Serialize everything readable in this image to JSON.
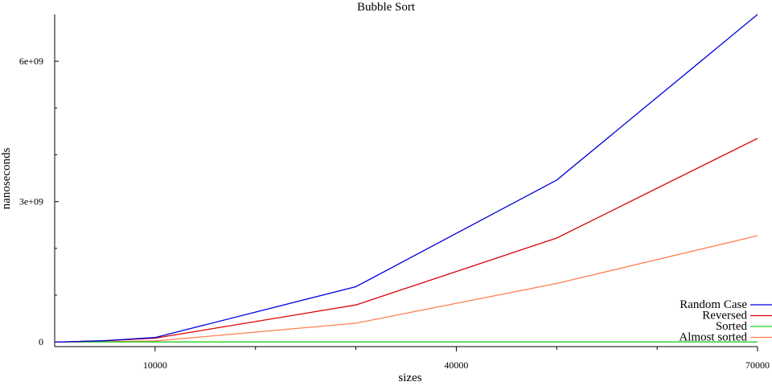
{
  "chart_data": {
    "type": "line",
    "title": "Bubble Sort",
    "xlabel": "sizes",
    "ylabel": "nanoseconds",
    "xlim": [
      0,
      70000
    ],
    "ylim": [
      -100000000,
      7000000000
    ],
    "xticks": [
      10000,
      40000,
      70000
    ],
    "xticks_minor": [
      20000,
      30000,
      50000,
      60000
    ],
    "xtick_labels": [
      "10000",
      "40000",
      "70000"
    ],
    "yticks": [
      0,
      3000000000,
      6000000000
    ],
    "ytick_labels": [
      "0",
      "3e+09",
      "6e+09"
    ],
    "yticks_minor": [
      1000000000,
      2000000000,
      4000000000,
      5000000000
    ],
    "grid": false,
    "legend_position": "bottom-right",
    "x": [
      100,
      1000,
      5000,
      10000,
      30000,
      50000,
      70000
    ],
    "series": [
      {
        "name": "Random Case",
        "color": "#0000dd",
        "values": [
          0,
          1000000,
          28000000,
          95000000,
          1180000000,
          3460000000,
          7000000000
        ]
      },
      {
        "name": "Reversed",
        "color": "#dd0000",
        "values": [
          0,
          1000000,
          25000000,
          80000000,
          790000000,
          2220000000,
          4350000000
        ]
      },
      {
        "name": "Sorted",
        "color": "#22cc22",
        "values": [
          0,
          0,
          0,
          0,
          0,
          0,
          0
        ]
      },
      {
        "name": "Almost sorted",
        "color": "#ff7f50",
        "values": [
          0,
          300000,
          6000000,
          20000000,
          400000000,
          1250000000,
          2270000000
        ]
      }
    ]
  }
}
